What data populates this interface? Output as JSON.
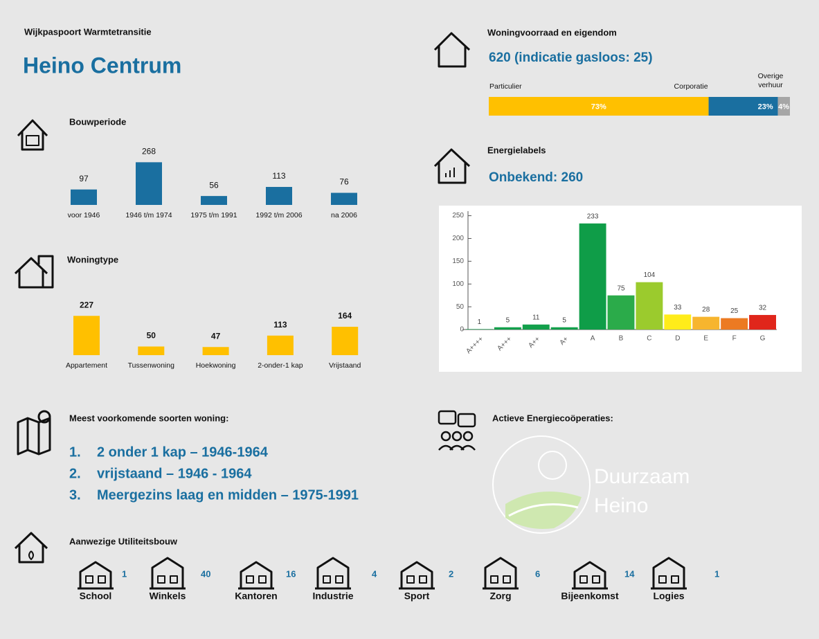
{
  "header": {
    "subtitle": "Wijkpaspoort Warmtetransitie",
    "title": "Heino Centrum"
  },
  "chart_data": [
    {
      "type": "bar",
      "title": "Bouwperiode",
      "categories": [
        "voor 1946",
        "1946 t/m 1974",
        "1975 t/m 1991",
        "1992 t/m 2006",
        "na 2006"
      ],
      "values": [
        97,
        268,
        56,
        113,
        76
      ],
      "color": "#1a6fa0"
    },
    {
      "type": "bar",
      "title": "Woningtype",
      "categories": [
        "Appartement",
        "Tussenwoning",
        "Hoekwoning",
        "2-onder-1 kap",
        "Vrijstaand"
      ],
      "values": [
        227,
        50,
        47,
        113,
        164
      ],
      "color": "#ffc000"
    },
    {
      "type": "stacked_bar",
      "title": "Woningvoorraad en eigendom",
      "subtitle": "620 (indicatie gasloos: 25)",
      "xlim": [
        0,
        100
      ],
      "series": [
        {
          "name": "Particulier",
          "color": "#ffc000",
          "values": [
            73
          ],
          "value_labels": [
            "73%"
          ]
        },
        {
          "name": "Corporatie",
          "color": "#1a6fa0",
          "values": [
            23
          ],
          "value_labels": [
            "23%"
          ]
        },
        {
          "name": "Overige verhuur",
          "color": "#a6a6a6",
          "values": [
            4
          ],
          "value_labels": [
            "4%"
          ]
        }
      ]
    },
    {
      "type": "column",
      "title": "Energielabels",
      "subtitle": "Onbekend: 260",
      "categories": [
        "A++++",
        "A+++",
        "A++",
        "A+",
        "A",
        "B",
        "C",
        "D",
        "E",
        "F",
        "G"
      ],
      "values": [
        1,
        5,
        11,
        5,
        233,
        75,
        104,
        33,
        28,
        25,
        32
      ],
      "colors": [
        "#13a04b",
        "#13a04b",
        "#13a04b",
        "#13a04b",
        "#0f9d48",
        "#2bab4a",
        "#9bcb2d",
        "#ffec1a",
        "#f7b52e",
        "#ec7a22",
        "#e0261b"
      ],
      "ylim": [
        0,
        260
      ],
      "yticks": [
        0,
        50,
        100,
        150,
        200,
        250
      ]
    }
  ],
  "meest": {
    "title": "Meest voorkomende soorten woning:",
    "items": [
      {
        "number": "1.",
        "text": "2 onder 1 kap – 1946-1964"
      },
      {
        "number": "2.",
        "text": "vrijstaand – 1946 - 1964"
      },
      {
        "number": "3.",
        "text": "Meergezins laag en midden – 1975-1991"
      }
    ]
  },
  "cooperaties": {
    "title": "Actieve Energiecoöperaties:",
    "logo": [
      "Duurzaam",
      "Heino"
    ]
  },
  "utiliteitsbouw": {
    "title": "Aanwezige Utiliteitsbouw",
    "items": [
      {
        "name": "School",
        "count": "1"
      },
      {
        "name": "Winkels",
        "count": "40"
      },
      {
        "name": "Kantoren",
        "count": "16"
      },
      {
        "name": "Industrie",
        "count": "4"
      },
      {
        "name": "Sport",
        "count": "2"
      },
      {
        "name": "Zorg",
        "count": "6"
      },
      {
        "name": "Bijeenkomst",
        "count": "14"
      },
      {
        "name": "Logies",
        "count": "1"
      }
    ]
  }
}
